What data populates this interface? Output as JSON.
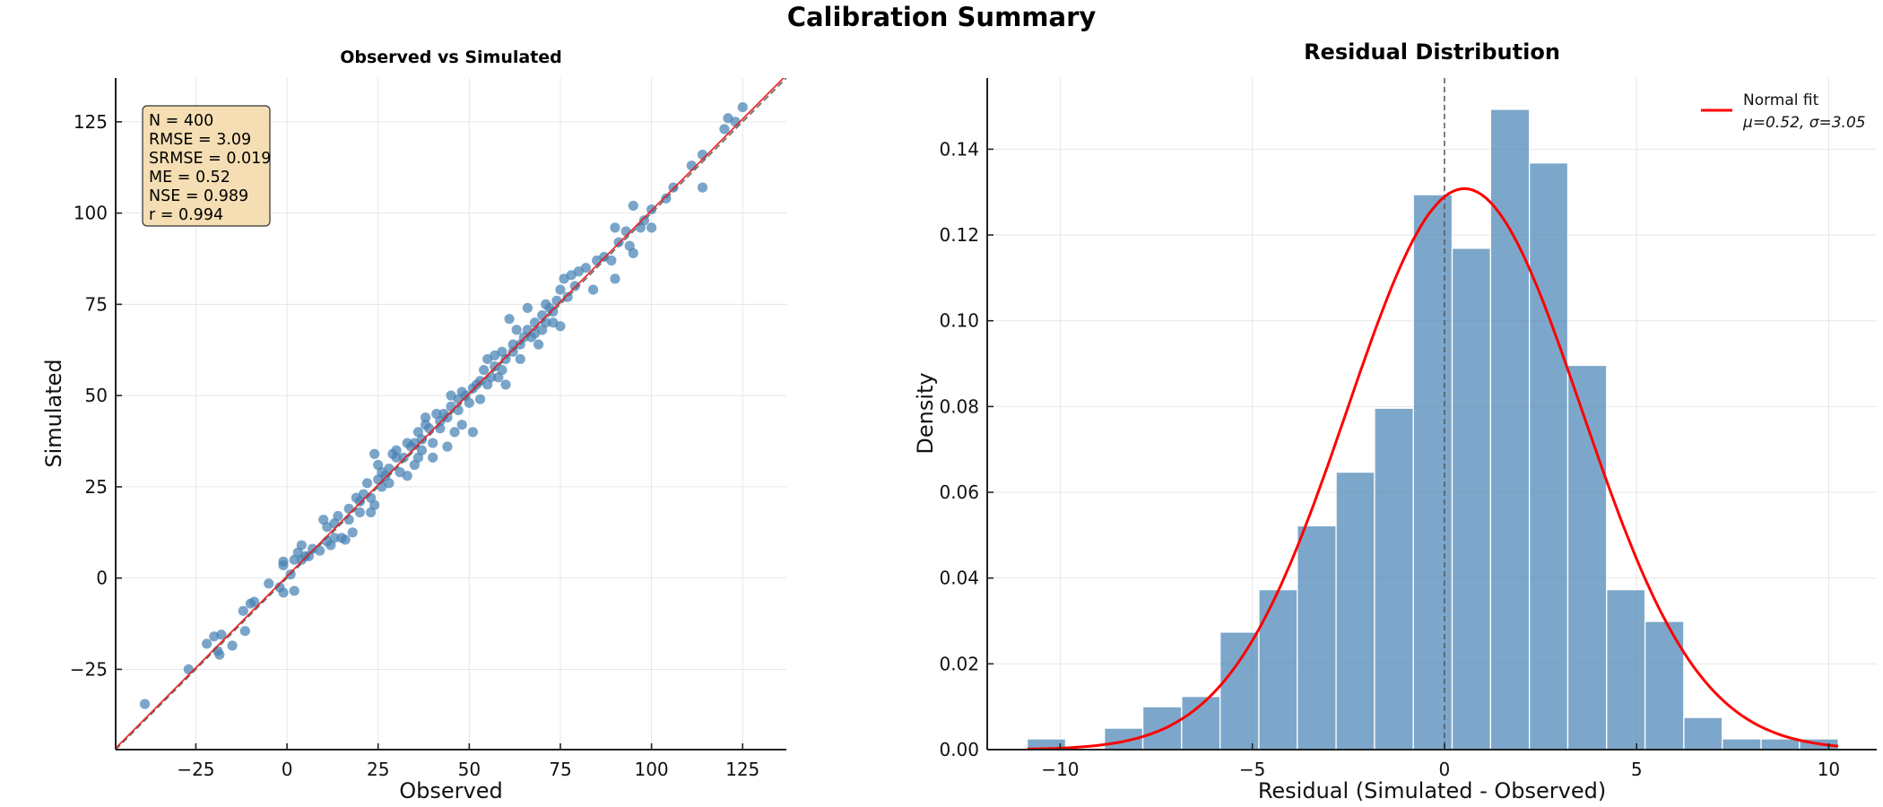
{
  "figure": {
    "title": "Calibration Summary"
  },
  "chart_data": [
    {
      "type": "scatter",
      "title": "Observed vs Simulated",
      "xlabel": "Observed",
      "ylabel": "Simulated",
      "xlim": [
        -47,
        137
      ],
      "ylim": [
        -47,
        137
      ],
      "xticks": [
        -25,
        0,
        25,
        50,
        75,
        100,
        125
      ],
      "yticks": [
        -25,
        0,
        25,
        50,
        75,
        100,
        125
      ],
      "xtick_labels": [
        "−25",
        "0",
        "25",
        "50",
        "75",
        "100",
        "125"
      ],
      "ytick_labels": [
        "−25",
        "0",
        "25",
        "50",
        "75",
        "100",
        "125"
      ],
      "grid": true,
      "point_color": "#4682b4",
      "fit_line": {
        "color": "#e41a1c",
        "style": "solid",
        "slope": 1.002,
        "intercept": 0.5
      },
      "one_to_one_line": {
        "color": "#666666",
        "style": "dashed",
        "slope": 1,
        "intercept": 0
      },
      "stats_box": {
        "placement": "top-left",
        "background": "#f5deb3",
        "lines": [
          "N = 400",
          "RMSE = 3.09",
          "SRMSE = 0.019",
          "ME = 0.52",
          "NSE = 0.989",
          "r = 0.994"
        ]
      },
      "points": [
        [
          -39,
          -34.5
        ],
        [
          -27,
          -25
        ],
        [
          -22,
          -18
        ],
        [
          -20,
          -16
        ],
        [
          -19,
          -20
        ],
        [
          -18.5,
          -21
        ],
        [
          -18,
          -15.5
        ],
        [
          -15,
          -18.5
        ],
        [
          -12,
          -9
        ],
        [
          -11.5,
          -14.5
        ],
        [
          -10,
          -7
        ],
        [
          -9,
          -6.5
        ],
        [
          -5,
          -1.5
        ],
        [
          -2,
          -2.5
        ],
        [
          -1,
          -4
        ],
        [
          -1,
          4.5
        ],
        [
          -1,
          3.5
        ],
        [
          1,
          1
        ],
        [
          2,
          -3.5
        ],
        [
          2,
          5
        ],
        [
          3,
          7
        ],
        [
          4,
          5
        ],
        [
          4,
          9
        ],
        [
          5,
          6
        ],
        [
          6,
          6
        ],
        [
          7,
          8
        ],
        [
          9,
          7.5
        ],
        [
          10,
          16
        ],
        [
          11,
          14
        ],
        [
          11,
          10
        ],
        [
          12,
          9
        ],
        [
          13,
          11
        ],
        [
          13,
          15
        ],
        [
          14,
          17
        ],
        [
          15,
          11
        ],
        [
          16,
          10.5
        ],
        [
          17,
          16
        ],
        [
          17,
          19
        ],
        [
          18,
          12.5
        ],
        [
          19,
          22
        ],
        [
          20,
          21
        ],
        [
          22,
          26
        ],
        [
          23,
          18
        ],
        [
          23,
          22
        ],
        [
          24,
          20
        ],
        [
          24,
          34
        ],
        [
          25,
          31
        ],
        [
          25,
          27
        ],
        [
          26,
          25
        ],
        [
          27,
          28
        ],
        [
          28,
          30
        ],
        [
          28,
          26
        ],
        [
          29,
          34
        ],
        [
          30,
          33
        ],
        [
          30,
          35
        ],
        [
          31,
          29
        ],
        [
          33,
          37
        ],
        [
          33,
          28
        ],
        [
          34,
          36
        ],
        [
          35,
          31
        ],
        [
          36,
          40
        ],
        [
          36,
          33
        ],
        [
          37,
          38
        ],
        [
          38,
          42
        ],
        [
          38,
          44
        ],
        [
          39,
          41
        ],
        [
          40,
          33
        ],
        [
          40,
          37
        ],
        [
          41,
          45
        ],
        [
          42,
          43
        ],
        [
          43,
          45
        ],
        [
          44,
          36
        ],
        [
          45,
          47
        ],
        [
          45,
          50
        ],
        [
          46,
          40
        ],
        [
          47,
          49
        ],
        [
          48,
          51
        ],
        [
          48,
          42
        ],
        [
          50,
          48
        ],
        [
          51,
          40
        ],
        [
          51,
          52
        ],
        [
          52,
          53
        ],
        [
          53,
          49
        ],
        [
          54,
          57
        ],
        [
          55,
          60
        ],
        [
          56,
          55
        ],
        [
          57,
          58
        ],
        [
          58,
          55
        ],
        [
          59,
          62
        ],
        [
          60,
          60
        ],
        [
          60,
          53
        ],
        [
          61,
          71
        ],
        [
          62,
          64
        ],
        [
          63,
          68
        ],
        [
          64,
          60
        ],
        [
          65,
          66
        ],
        [
          66,
          74
        ],
        [
          67,
          66
        ],
        [
          68,
          70
        ],
        [
          69,
          64
        ],
        [
          70,
          72
        ],
        [
          70,
          68
        ],
        [
          71,
          75
        ],
        [
          72,
          74
        ],
        [
          73,
          70
        ],
        [
          74,
          76
        ],
        [
          75,
          69
        ],
        [
          75,
          79
        ],
        [
          76,
          82
        ],
        [
          77,
          77
        ],
        [
          78,
          83
        ],
        [
          79,
          80
        ],
        [
          80,
          84
        ],
        [
          82,
          85
        ],
        [
          84,
          79
        ],
        [
          85,
          87
        ],
        [
          87,
          88
        ],
        [
          89,
          87
        ],
        [
          90,
          96
        ],
        [
          90,
          82
        ],
        [
          91,
          92
        ],
        [
          93,
          95
        ],
        [
          94,
          91
        ],
        [
          95,
          102
        ],
        [
          95,
          89
        ],
        [
          97,
          96
        ],
        [
          98,
          98
        ],
        [
          100,
          101
        ],
        [
          100,
          96
        ],
        [
          104,
          104
        ],
        [
          106,
          107
        ],
        [
          111,
          113
        ],
        [
          114,
          116
        ],
        [
          114,
          107
        ],
        [
          120,
          123
        ],
        [
          121,
          126
        ],
        [
          123,
          125
        ],
        [
          125,
          129
        ],
        [
          20,
          18
        ],
        [
          21,
          23
        ],
        [
          26,
          29
        ],
        [
          32,
          33
        ],
        [
          35,
          37
        ],
        [
          37,
          35
        ],
        [
          42,
          41
        ],
        [
          44,
          44
        ],
        [
          47,
          46
        ],
        [
          49,
          50
        ],
        [
          53,
          54
        ],
        [
          55,
          53
        ],
        [
          57,
          61
        ],
        [
          59,
          57
        ],
        [
          62,
          62
        ],
        [
          64,
          64
        ],
        [
          66,
          68
        ],
        [
          68,
          67
        ],
        [
          71,
          70
        ],
        [
          73,
          73
        ]
      ]
    },
    {
      "type": "bar",
      "subtype": "histogram",
      "title": "Residual Distribution",
      "xlabel": "Residual (Simulated - Observed)",
      "ylabel": "Density",
      "xlim": [
        -11.9,
        11.25
      ],
      "ylim": [
        0,
        0.1566
      ],
      "xticks": [
        -10,
        -5,
        0,
        5,
        10
      ],
      "xtick_labels": [
        "−10",
        "−5",
        "0",
        "5",
        "10"
      ],
      "yticks": [
        0,
        0.02,
        0.04,
        0.06,
        0.08,
        0.1,
        0.12,
        0.14
      ],
      "ytick_labels": [
        "0.00",
        "0.02",
        "0.04",
        "0.06",
        "0.08",
        "0.10",
        "0.12",
        "0.14"
      ],
      "grid": true,
      "bar_color": "#4682b4",
      "bin_edges": [
        -10.86,
        -9.86,
        -8.85,
        -7.85,
        -6.84,
        -5.84,
        -4.83,
        -3.83,
        -2.82,
        -1.82,
        -0.81,
        0.2,
        1.2,
        2.21,
        3.21,
        4.22,
        5.22,
        6.23,
        7.23,
        8.24,
        9.24,
        10.25
      ],
      "densities": [
        0.0025,
        0,
        0.005,
        0.01,
        0.0124,
        0.0274,
        0.0373,
        0.0522,
        0.0647,
        0.0796,
        0.1294,
        0.1169,
        0.1493,
        0.1368,
        0.0896,
        0.0373,
        0.0299,
        0.0075,
        0.0025,
        0.0025,
        0.0025
      ],
      "zero_line": {
        "x": 0,
        "color": "#555555",
        "style": "dashed"
      },
      "normal_fit": {
        "mu": 0.52,
        "sigma": 3.05,
        "color": "#ff0000",
        "x_range": [
          -10.86,
          10.25
        ]
      },
      "legend": {
        "placement": "top-right",
        "entries": [
          {
            "label_line1": "Normal fit",
            "label_line2": "μ=0.52, σ=3.05",
            "color": "#ff0000"
          }
        ]
      }
    }
  ]
}
